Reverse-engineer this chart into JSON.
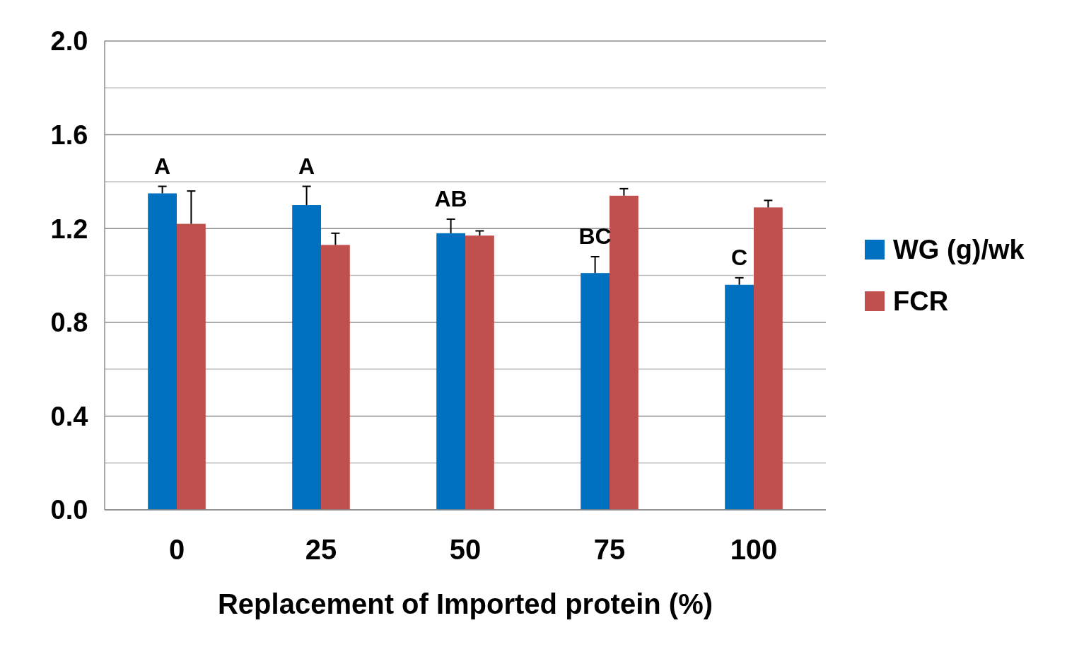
{
  "chart_data": {
    "type": "bar",
    "xlabel": "Replacement of Imported protein (%)",
    "categories": [
      "0",
      "25",
      "50",
      "75",
      "100"
    ],
    "series": [
      {
        "name": "WG (g)/wk",
        "color": "#0070c0",
        "values": [
          1.35,
          1.3,
          1.18,
          1.01,
          0.96
        ],
        "errors": [
          [
            1.35,
            1.38
          ],
          [
            1.3,
            1.38
          ],
          [
            1.18,
            1.24
          ],
          [
            1.01,
            1.08
          ],
          [
            0.96,
            0.99
          ]
        ]
      },
      {
        "name": "FCR",
        "color": "#c0504d",
        "values": [
          1.22,
          1.13,
          1.17,
          1.34,
          1.29
        ],
        "errors": [
          [
            1.22,
            1.36
          ],
          [
            1.13,
            1.18
          ],
          [
            1.17,
            1.19
          ],
          [
            1.34,
            1.37
          ],
          [
            1.29,
            1.32
          ]
        ]
      }
    ],
    "ylim": [
      0,
      2
    ],
    "yticks": [
      {
        "value": 0,
        "label": "0.0"
      },
      {
        "value": 0.2,
        "label": null
      },
      {
        "value": 0.4,
        "label": "0.4"
      },
      {
        "value": 0.6,
        "label": null
      },
      {
        "value": 0.8,
        "label": "0.8"
      },
      {
        "value": 1.0,
        "label": null
      },
      {
        "value": 1.2,
        "label": "1.2"
      },
      {
        "value": 1.4,
        "label": null
      },
      {
        "value": 1.6,
        "label": "1.6"
      },
      {
        "value": 1.8,
        "label": null
      },
      {
        "value": 2.0,
        "label": "2.0"
      }
    ],
    "grid": "y",
    "legend": "right",
    "annotations": [
      "A",
      "A",
      "AB",
      "BC",
      "C"
    ]
  }
}
